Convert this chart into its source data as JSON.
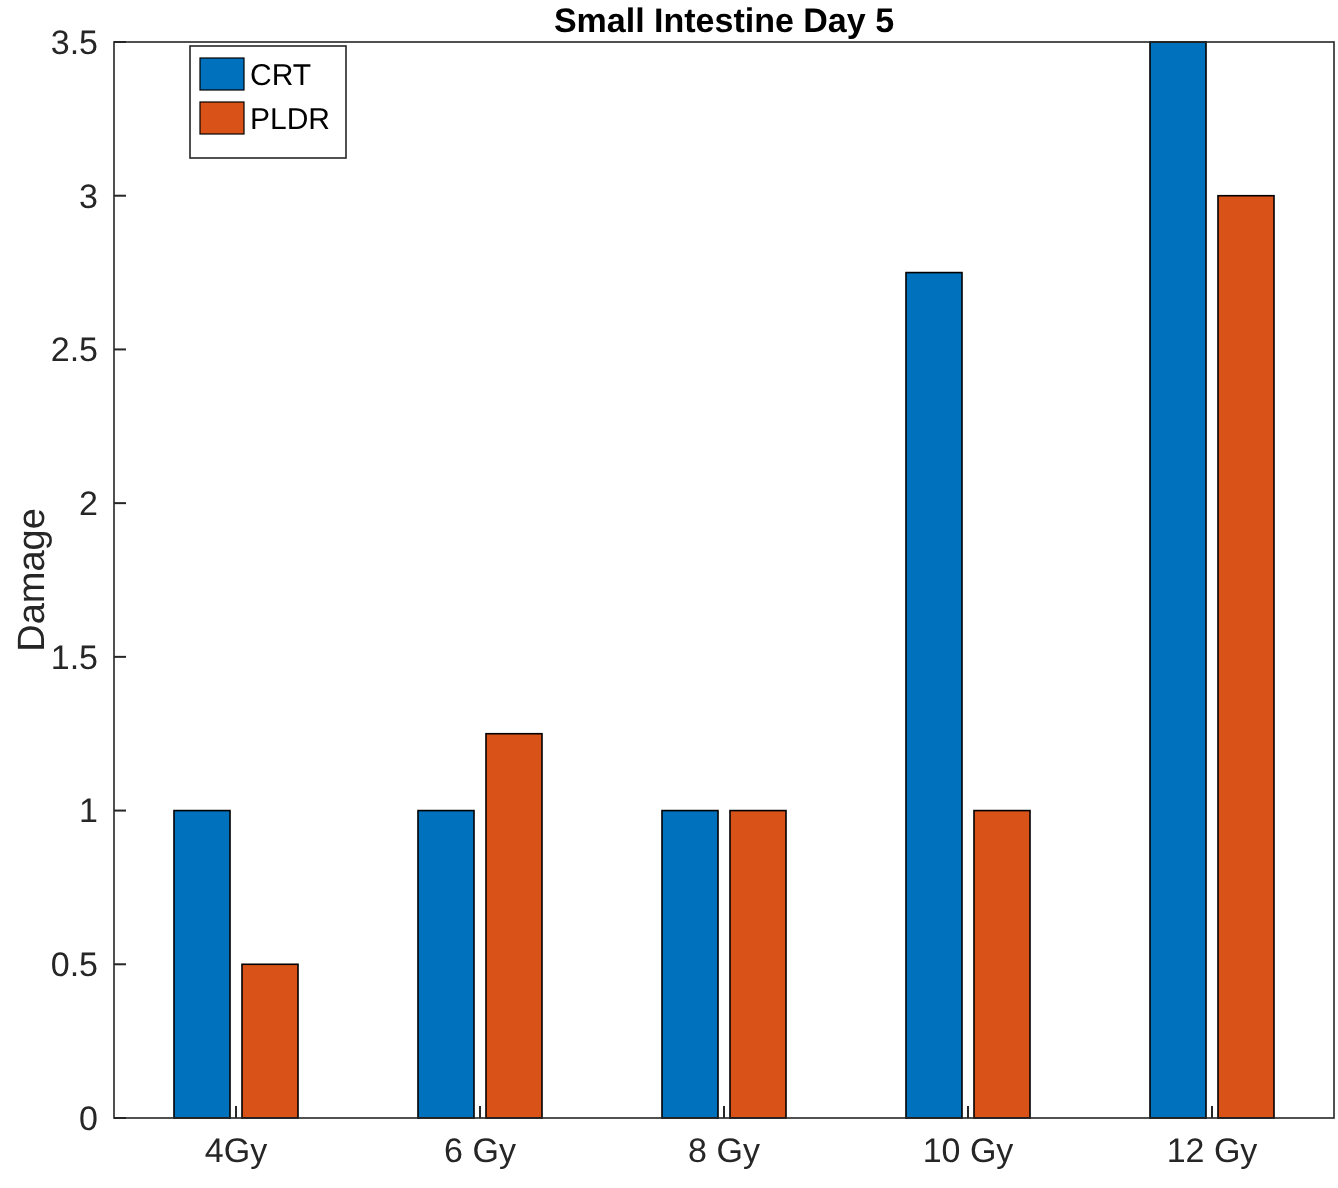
{
  "chart_data": {
    "type": "bar",
    "title": "Small Intestine Day 5",
    "ylabel": "Damage",
    "categories": [
      "4Gy",
      "6 Gy",
      "8 Gy",
      "10 Gy",
      "12 Gy"
    ],
    "series": [
      {
        "name": "CRT",
        "color": "#0072bd",
        "values": [
          1,
          1,
          1,
          2.75,
          3.5
        ]
      },
      {
        "name": "PLDR",
        "color": "#d95319",
        "values": [
          0.5,
          1.25,
          1,
          1,
          3
        ]
      }
    ],
    "ylim": [
      0,
      3.5
    ],
    "yticks": [
      0,
      0.5,
      1,
      1.5,
      2,
      2.5,
      3,
      3.5
    ],
    "grid": false,
    "legend": "top left"
  }
}
